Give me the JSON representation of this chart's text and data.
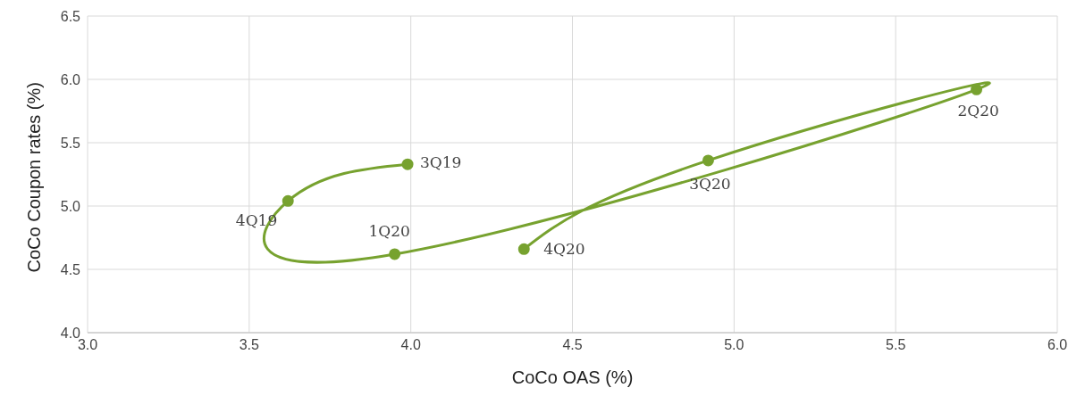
{
  "chart_data": {
    "type": "line",
    "xlabel": "CoCo OAS (%)",
    "ylabel": "CoCo Coupon rates (%)",
    "x": [
      3.99,
      3.62,
      3.95,
      5.75,
      4.92,
      4.35
    ],
    "series": [
      {
        "color": "#77a22f",
        "values": [
          5.33,
          5.04,
          4.62,
          5.92,
          5.36,
          4.66
        ]
      }
    ],
    "xlim": [
      3.0,
      6.0
    ],
    "xticks": [
      {
        "value": 3.0,
        "label": "3.0"
      },
      {
        "value": 3.5,
        "label": "3.5"
      },
      {
        "value": 4.0,
        "label": "4.0"
      },
      {
        "value": 4.5,
        "label": "4.5"
      },
      {
        "value": 5.0,
        "label": "5.0"
      },
      {
        "value": 5.5,
        "label": "5.5"
      },
      {
        "value": 6.0,
        "label": "6.0"
      }
    ],
    "ylim": [
      4.0,
      6.5
    ],
    "yticks": [
      {
        "value": 4.0,
        "label": "4.0"
      },
      {
        "value": 4.5,
        "label": "4.5"
      },
      {
        "value": 5.0,
        "label": "5.0"
      },
      {
        "value": 5.5,
        "label": "5.5"
      },
      {
        "value": 6.0,
        "label": "6.0"
      },
      {
        "value": 6.5,
        "label": "6.5"
      }
    ],
    "annotations": [
      {
        "text": "3Q19",
        "x": 3.99,
        "y": 5.33
      },
      {
        "text": "4Q19",
        "x": 3.62,
        "y": 5.04
      },
      {
        "text": "1Q20",
        "x": 3.95,
        "y": 4.62
      },
      {
        "text": "2Q20",
        "x": 5.75,
        "y": 5.92
      },
      {
        "text": "3Q20",
        "x": 4.92,
        "y": 5.36
      },
      {
        "text": "4Q20",
        "x": 4.35,
        "y": 4.66
      }
    ],
    "grid": true,
    "marker": "circle",
    "line_style": "solid",
    "legend": false
  }
}
